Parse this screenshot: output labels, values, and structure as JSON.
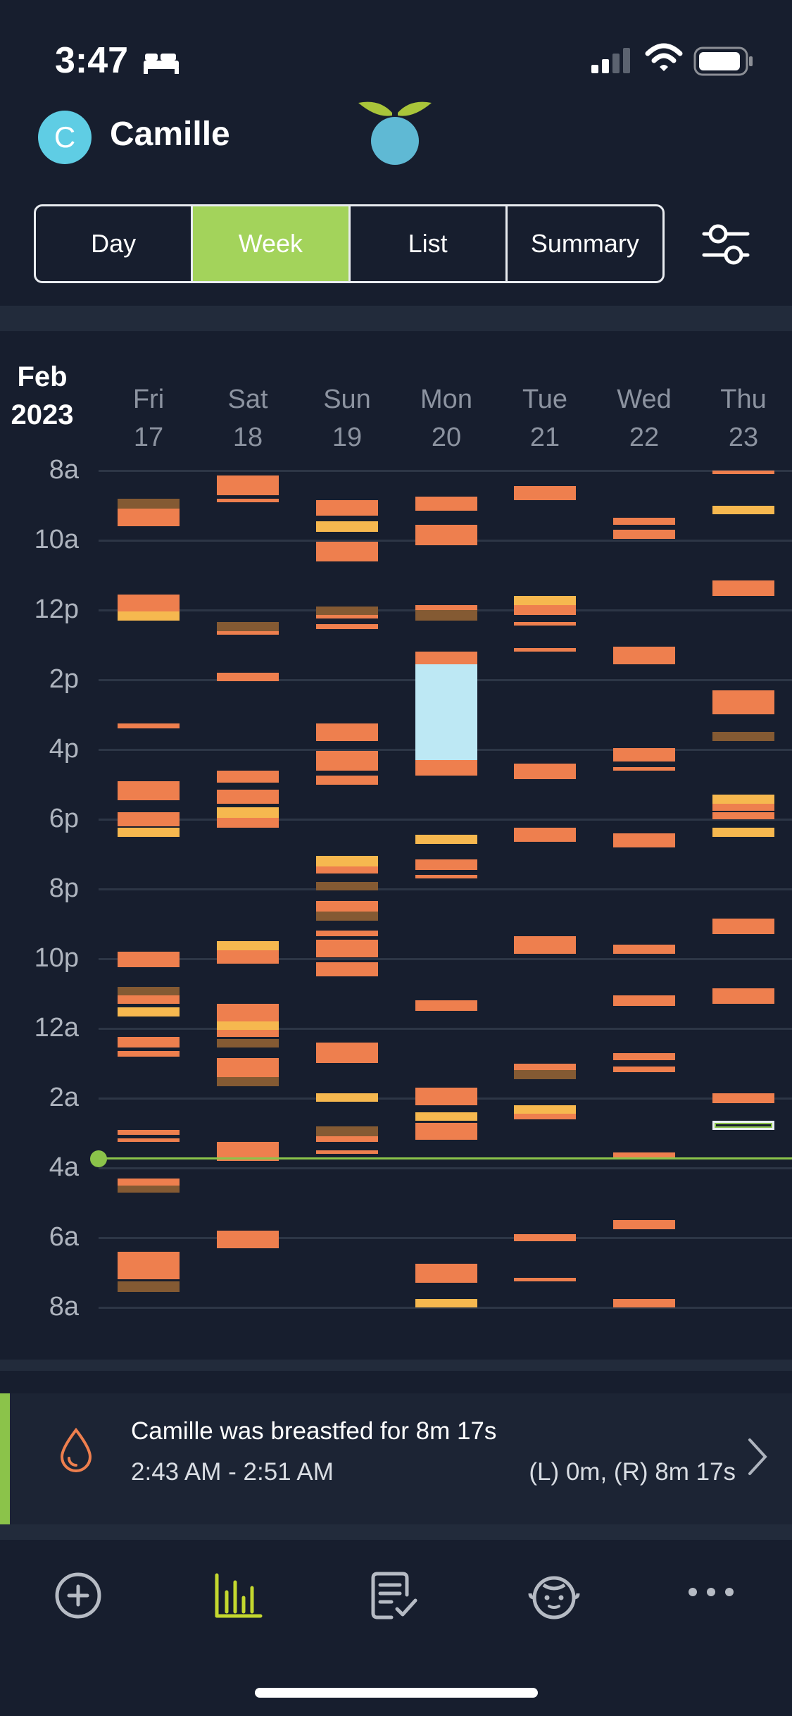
{
  "status": {
    "time": "3:47"
  },
  "header": {
    "avatar_initial": "C",
    "name": "Camille"
  },
  "tabs": [
    {
      "label": "Day",
      "active": false
    },
    {
      "label": "Week",
      "active": true
    },
    {
      "label": "List",
      "active": false
    },
    {
      "label": "Summary",
      "active": false
    }
  ],
  "calendar": {
    "month": "Feb",
    "year": "2023",
    "days": [
      {
        "weekday": "Fri",
        "date": "17"
      },
      {
        "weekday": "Sat",
        "date": "18"
      },
      {
        "weekday": "Sun",
        "date": "19"
      },
      {
        "weekday": "Mon",
        "date": "20"
      },
      {
        "weekday": "Tue",
        "date": "21"
      },
      {
        "weekday": "Wed",
        "date": "22"
      },
      {
        "weekday": "Thu",
        "date": "23"
      }
    ],
    "hours": [
      "8a",
      "10a",
      "12p",
      "2p",
      "4p",
      "6p",
      "8p",
      "10p",
      "12a",
      "2a",
      "4a",
      "6a",
      "8a"
    ],
    "colors": {
      "nursing": "#ee7f4e",
      "bottle": "#f6b84f",
      "diaper": "#845a33",
      "sleep": "#bde8f4",
      "now": "#8bc34a"
    },
    "events": [
      {
        "day": 0,
        "start": 8.8,
        "end": 9.1,
        "type": "diaper"
      },
      {
        "day": 0,
        "start": 9.1,
        "end": 9.6,
        "type": "nursing"
      },
      {
        "day": 0,
        "start": 11.55,
        "end": 12.05,
        "type": "nursing"
      },
      {
        "day": 0,
        "start": 12.05,
        "end": 12.3,
        "type": "bottle"
      },
      {
        "day": 0,
        "start": 15.25,
        "end": 15.4,
        "type": "nursing"
      },
      {
        "day": 0,
        "start": 16.9,
        "end": 17.45,
        "type": "nursing"
      },
      {
        "day": 0,
        "start": 17.8,
        "end": 18.2,
        "type": "nursing"
      },
      {
        "day": 0,
        "start": 18.25,
        "end": 18.5,
        "type": "bottle"
      },
      {
        "day": 0,
        "start": 21.8,
        "end": 22.25,
        "type": "nursing"
      },
      {
        "day": 0,
        "start": 22.8,
        "end": 23.05,
        "type": "diaper"
      },
      {
        "day": 0,
        "start": 23.05,
        "end": 23.3,
        "type": "nursing"
      },
      {
        "day": 0,
        "start": 23.4,
        "end": 23.65,
        "type": "bottle"
      },
      {
        "day": 0,
        "start": 24.25,
        "end": 24.55,
        "type": "nursing"
      },
      {
        "day": 0,
        "start": 24.65,
        "end": 24.8,
        "type": "nursing"
      },
      {
        "day": 0,
        "start": 26.9,
        "end": 27.05,
        "type": "nursing"
      },
      {
        "day": 0,
        "start": 27.15,
        "end": 27.25,
        "type": "nursing"
      },
      {
        "day": 0,
        "start": 28.3,
        "end": 28.5,
        "type": "nursing"
      },
      {
        "day": 0,
        "start": 28.5,
        "end": 28.7,
        "type": "diaper"
      },
      {
        "day": 0,
        "start": 30.4,
        "end": 31.2,
        "type": "nursing"
      },
      {
        "day": 0,
        "start": 31.25,
        "end": 31.55,
        "type": "diaper"
      },
      {
        "day": 1,
        "start": 8.15,
        "end": 8.7,
        "type": "nursing"
      },
      {
        "day": 1,
        "start": 8.8,
        "end": 8.9,
        "type": "nursing"
      },
      {
        "day": 1,
        "start": 12.35,
        "end": 12.6,
        "type": "diaper"
      },
      {
        "day": 1,
        "start": 12.6,
        "end": 12.7,
        "type": "nursing"
      },
      {
        "day": 1,
        "start": 13.8,
        "end": 14.05,
        "type": "nursing"
      },
      {
        "day": 1,
        "start": 16.6,
        "end": 16.95,
        "type": "nursing"
      },
      {
        "day": 1,
        "start": 17.15,
        "end": 17.55,
        "type": "nursing"
      },
      {
        "day": 1,
        "start": 17.65,
        "end": 17.95,
        "type": "bottle"
      },
      {
        "day": 1,
        "start": 17.95,
        "end": 18.25,
        "type": "nursing"
      },
      {
        "day": 1,
        "start": 21.5,
        "end": 21.75,
        "type": "bottle"
      },
      {
        "day": 1,
        "start": 21.75,
        "end": 22.15,
        "type": "nursing"
      },
      {
        "day": 1,
        "start": 23.3,
        "end": 23.8,
        "type": "nursing"
      },
      {
        "day": 1,
        "start": 23.8,
        "end": 24.05,
        "type": "bottle"
      },
      {
        "day": 1,
        "start": 24.05,
        "end": 24.25,
        "type": "nursing"
      },
      {
        "day": 1,
        "start": 24.3,
        "end": 24.55,
        "type": "diaper"
      },
      {
        "day": 1,
        "start": 24.85,
        "end": 25.4,
        "type": "nursing"
      },
      {
        "day": 1,
        "start": 25.4,
        "end": 25.65,
        "type": "diaper"
      },
      {
        "day": 1,
        "start": 27.25,
        "end": 27.8,
        "type": "nursing"
      },
      {
        "day": 1,
        "start": 29.8,
        "end": 30.3,
        "type": "nursing"
      },
      {
        "day": 2,
        "start": 8.85,
        "end": 9.3,
        "type": "nursing"
      },
      {
        "day": 2,
        "start": 9.45,
        "end": 9.75,
        "type": "bottle"
      },
      {
        "day": 2,
        "start": 10.05,
        "end": 10.6,
        "type": "nursing"
      },
      {
        "day": 2,
        "start": 11.9,
        "end": 12.15,
        "type": "diaper"
      },
      {
        "day": 2,
        "start": 12.15,
        "end": 12.25,
        "type": "nursing"
      },
      {
        "day": 2,
        "start": 12.4,
        "end": 12.55,
        "type": "nursing"
      },
      {
        "day": 2,
        "start": 15.25,
        "end": 15.75,
        "type": "nursing"
      },
      {
        "day": 2,
        "start": 16.05,
        "end": 16.6,
        "type": "nursing"
      },
      {
        "day": 2,
        "start": 16.75,
        "end": 17.0,
        "type": "nursing"
      },
      {
        "day": 2,
        "start": 19.05,
        "end": 19.35,
        "type": "bottle"
      },
      {
        "day": 2,
        "start": 19.35,
        "end": 19.55,
        "type": "nursing"
      },
      {
        "day": 2,
        "start": 19.8,
        "end": 20.05,
        "type": "diaper"
      },
      {
        "day": 2,
        "start": 20.35,
        "end": 20.65,
        "type": "nursing"
      },
      {
        "day": 2,
        "start": 20.65,
        "end": 20.9,
        "type": "diaper"
      },
      {
        "day": 2,
        "start": 21.2,
        "end": 21.35,
        "type": "nursing"
      },
      {
        "day": 2,
        "start": 21.45,
        "end": 21.95,
        "type": "nursing"
      },
      {
        "day": 2,
        "start": 22.1,
        "end": 22.5,
        "type": "nursing"
      },
      {
        "day": 2,
        "start": 24.4,
        "end": 25.0,
        "type": "nursing"
      },
      {
        "day": 2,
        "start": 25.85,
        "end": 26.1,
        "type": "bottle"
      },
      {
        "day": 2,
        "start": 26.8,
        "end": 27.1,
        "type": "diaper"
      },
      {
        "day": 2,
        "start": 27.1,
        "end": 27.25,
        "type": "nursing"
      },
      {
        "day": 2,
        "start": 27.5,
        "end": 27.6,
        "type": "nursing"
      },
      {
        "day": 3,
        "start": 8.75,
        "end": 9.15,
        "type": "nursing"
      },
      {
        "day": 3,
        "start": 9.55,
        "end": 10.15,
        "type": "nursing"
      },
      {
        "day": 3,
        "start": 11.85,
        "end": 12.0,
        "type": "nursing"
      },
      {
        "day": 3,
        "start": 12.0,
        "end": 12.3,
        "type": "diaper"
      },
      {
        "day": 3,
        "start": 13.2,
        "end": 13.55,
        "type": "nursing"
      },
      {
        "day": 3,
        "start": 13.55,
        "end": 16.3,
        "type": "sleep"
      },
      {
        "day": 3,
        "start": 16.3,
        "end": 16.75,
        "type": "nursing"
      },
      {
        "day": 3,
        "start": 18.45,
        "end": 18.7,
        "type": "bottle"
      },
      {
        "day": 3,
        "start": 19.15,
        "end": 19.45,
        "type": "nursing"
      },
      {
        "day": 3,
        "start": 19.6,
        "end": 19.7,
        "type": "nursing"
      },
      {
        "day": 3,
        "start": 23.2,
        "end": 23.5,
        "type": "nursing"
      },
      {
        "day": 3,
        "start": 25.7,
        "end": 26.2,
        "type": "nursing"
      },
      {
        "day": 3,
        "start": 26.4,
        "end": 26.65,
        "type": "bottle"
      },
      {
        "day": 3,
        "start": 26.7,
        "end": 27.2,
        "type": "nursing"
      },
      {
        "day": 3,
        "start": 30.75,
        "end": 31.3,
        "type": "nursing"
      },
      {
        "day": 3,
        "start": 31.75,
        "end": 32.0,
        "type": "bottle"
      },
      {
        "day": 4,
        "start": 8.45,
        "end": 8.85,
        "type": "nursing"
      },
      {
        "day": 4,
        "start": 11.6,
        "end": 11.85,
        "type": "bottle"
      },
      {
        "day": 4,
        "start": 11.85,
        "end": 12.15,
        "type": "nursing"
      },
      {
        "day": 4,
        "start": 12.35,
        "end": 12.45,
        "type": "nursing"
      },
      {
        "day": 4,
        "start": 13.1,
        "end": 13.2,
        "type": "nursing"
      },
      {
        "day": 4,
        "start": 16.4,
        "end": 16.85,
        "type": "nursing"
      },
      {
        "day": 4,
        "start": 18.25,
        "end": 18.65,
        "type": "nursing"
      },
      {
        "day": 4,
        "start": 21.35,
        "end": 21.85,
        "type": "nursing"
      },
      {
        "day": 4,
        "start": 25.0,
        "end": 25.2,
        "type": "nursing"
      },
      {
        "day": 4,
        "start": 25.2,
        "end": 25.45,
        "type": "diaper"
      },
      {
        "day": 4,
        "start": 26.2,
        "end": 26.45,
        "type": "bottle"
      },
      {
        "day": 4,
        "start": 26.45,
        "end": 26.6,
        "type": "nursing"
      },
      {
        "day": 4,
        "start": 29.9,
        "end": 30.1,
        "type": "nursing"
      },
      {
        "day": 4,
        "start": 31.15,
        "end": 31.25,
        "type": "nursing"
      },
      {
        "day": 5,
        "start": 9.35,
        "end": 9.55,
        "type": "nursing"
      },
      {
        "day": 5,
        "start": 9.7,
        "end": 9.95,
        "type": "nursing"
      },
      {
        "day": 5,
        "start": 13.05,
        "end": 13.55,
        "type": "nursing"
      },
      {
        "day": 5,
        "start": 15.95,
        "end": 16.35,
        "type": "nursing"
      },
      {
        "day": 5,
        "start": 16.5,
        "end": 16.6,
        "type": "nursing"
      },
      {
        "day": 5,
        "start": 18.4,
        "end": 18.8,
        "type": "nursing"
      },
      {
        "day": 5,
        "start": 21.6,
        "end": 21.85,
        "type": "nursing"
      },
      {
        "day": 5,
        "start": 23.05,
        "end": 23.35,
        "type": "nursing"
      },
      {
        "day": 5,
        "start": 24.7,
        "end": 24.9,
        "type": "nursing"
      },
      {
        "day": 5,
        "start": 25.1,
        "end": 25.25,
        "type": "nursing"
      },
      {
        "day": 5,
        "start": 27.55,
        "end": 27.7,
        "type": "nursing"
      },
      {
        "day": 5,
        "start": 29.5,
        "end": 29.75,
        "type": "nursing"
      },
      {
        "day": 5,
        "start": 31.75,
        "end": 32.0,
        "type": "nursing"
      },
      {
        "day": 6,
        "start": 8.0,
        "end": 8.1,
        "type": "nursing"
      },
      {
        "day": 6,
        "start": 9.0,
        "end": 9.25,
        "type": "bottle"
      },
      {
        "day": 6,
        "start": 11.15,
        "end": 11.6,
        "type": "nursing"
      },
      {
        "day": 6,
        "start": 14.3,
        "end": 15.0,
        "type": "nursing"
      },
      {
        "day": 6,
        "start": 15.5,
        "end": 15.75,
        "type": "diaper"
      },
      {
        "day": 6,
        "start": 17.3,
        "end": 17.55,
        "type": "bottle"
      },
      {
        "day": 6,
        "start": 17.55,
        "end": 17.75,
        "type": "nursing"
      },
      {
        "day": 6,
        "start": 17.8,
        "end": 18.0,
        "type": "nursing"
      },
      {
        "day": 6,
        "start": 18.25,
        "end": 18.5,
        "type": "bottle"
      },
      {
        "day": 6,
        "start": 20.85,
        "end": 21.3,
        "type": "nursing"
      },
      {
        "day": 6,
        "start": 22.85,
        "end": 23.3,
        "type": "nursing"
      },
      {
        "day": 6,
        "start": 25.85,
        "end": 26.15,
        "type": "nursing"
      },
      {
        "day": 6,
        "start": 26.65,
        "end": 26.9,
        "type": "outline"
      }
    ],
    "now": 27.7
  },
  "last_entry": {
    "title": "Camille was breastfed for 8m 17s",
    "time_range": "2:43 AM - 2:51 AM",
    "detail": "(L) 0m, (R) 8m 17s"
  },
  "bottom_nav": [
    {
      "icon": "add-circle-icon",
      "active": false
    },
    {
      "icon": "chart-icon",
      "active": true
    },
    {
      "icon": "notes-icon",
      "active": false
    },
    {
      "icon": "baby-face-icon",
      "active": false
    },
    {
      "icon": "more-icon",
      "active": false
    }
  ]
}
